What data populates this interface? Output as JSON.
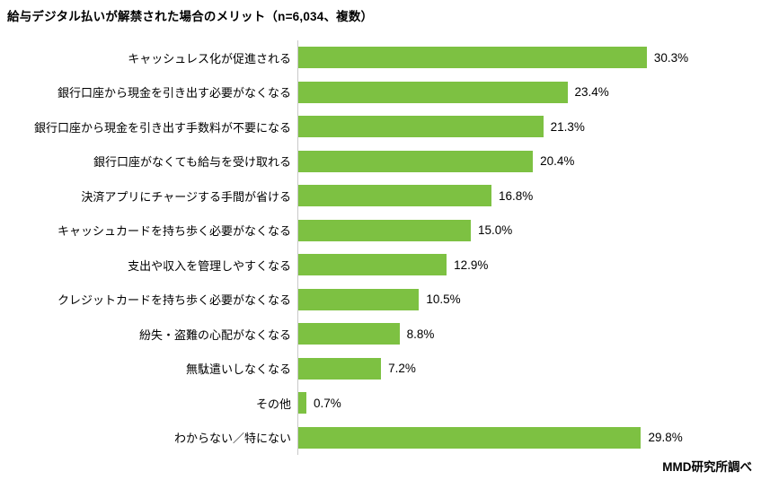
{
  "title": "給与デジタル払いが解禁された場合のメリット（n=6,034、複数）",
  "source": "MMD研究所調べ",
  "colors": {
    "bar": "#7DC142",
    "axis_line": "#C9C9C9",
    "text": "#000000",
    "background": "#FFFFFF"
  },
  "chart_data": {
    "type": "bar",
    "orientation": "horizontal",
    "title": "給与デジタル払いが解禁された場合のメリット（n=6,034、複数）",
    "sample_note": "n=6,034、複数",
    "xlabel": "",
    "ylabel": "",
    "xlim": [
      0,
      32
    ],
    "grid": false,
    "legend": null,
    "categories": [
      "キャッシュレス化が促進される",
      "銀行口座から現金を引き出す必要がなくなる",
      "銀行口座から現金を引き出す手数料が不要になる",
      "銀行口座がなくても給与を受け取れる",
      "決済アプリにチャージする手間が省ける",
      "キャッシュカードを持ち歩く必要がなくなる",
      "支出や収入を管理しやすくなる",
      "クレジットカードを持ち歩く必要がなくなる",
      "紛失・盗難の心配がなくなる",
      "無駄遣いしなくなる",
      "その他",
      "わからない／特にない"
    ],
    "values": [
      30.3,
      23.4,
      21.3,
      20.4,
      16.8,
      15.0,
      12.9,
      10.5,
      8.8,
      7.2,
      0.7,
      29.8
    ],
    "value_labels": [
      "30.3%",
      "23.4%",
      "21.3%",
      "20.4%",
      "16.8%",
      "15.0%",
      "12.9%",
      "10.5%",
      "8.8%",
      "7.2%",
      "0.7%",
      "29.8%"
    ]
  }
}
